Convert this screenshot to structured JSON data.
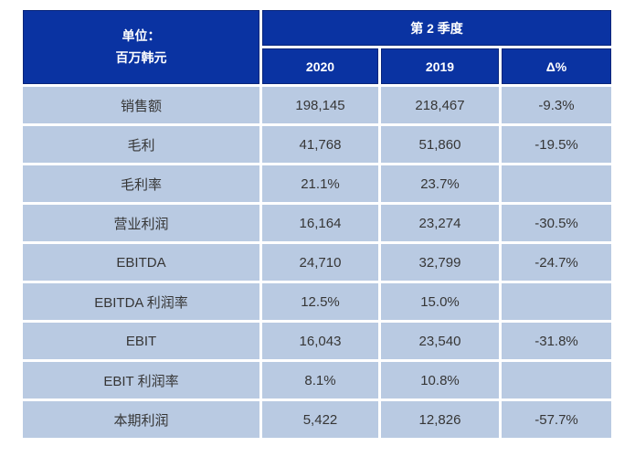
{
  "colors": {
    "header_background": "#0a33a2",
    "header_border": "#08257a",
    "header_text": "#ffffff",
    "body_row_background": "#b9cae2",
    "body_text": "#363636",
    "divider": "#ffffff",
    "page_background": "#ffffff"
  },
  "header": {
    "unit_line1": "单位：",
    "unit_line2": "百万韩元"
  },
  "chart_data": {
    "type": "table",
    "title": "第 2 季度",
    "unit_label": "单位：百万韩元",
    "columns": [
      "2020",
      "2019",
      "Δ%"
    ],
    "row_labels": [
      "销售额",
      "毛利",
      "毛利率",
      "营业利润",
      "EBITDA",
      "EBITDA 利润率",
      "EBIT",
      "EBIT 利润率",
      "本期利润"
    ],
    "rows": [
      [
        "198,145",
        "218,467",
        "-9.3%"
      ],
      [
        "41,768",
        "51,860",
        "-19.5%"
      ],
      [
        "21.1%",
        "23.7%",
        ""
      ],
      [
        "16,164",
        "23,274",
        "-30.5%"
      ],
      [
        "24,710",
        "32,799",
        "-24.7%"
      ],
      [
        "12.5%",
        "15.0%",
        ""
      ],
      [
        "16,043",
        "23,540",
        "-31.8%"
      ],
      [
        "8.1%",
        "10.8%",
        ""
      ],
      [
        "5,422",
        "12,826",
        "-57.7%"
      ]
    ],
    "layout_hints": {
      "label_column_spans_header_rows": true,
      "quarter_header_spans_value_columns": true,
      "all_cells_centered": true,
      "grid": "white 3px dividers between light-blue body cells"
    }
  }
}
